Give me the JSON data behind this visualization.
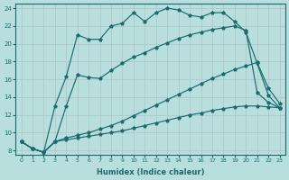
{
  "xlabel": "Humidex (Indice chaleur)",
  "bg_color": "#b8dede",
  "grid_color": "#b0c8c8",
  "line_color": "#1a6b6b",
  "xlim": [
    -0.5,
    23.5
  ],
  "ylim": [
    7.5,
    24.5
  ],
  "xticks": [
    0,
    1,
    2,
    3,
    4,
    5,
    6,
    7,
    8,
    9,
    10,
    11,
    12,
    13,
    14,
    15,
    16,
    17,
    18,
    19,
    20,
    21,
    22,
    23
  ],
  "yticks": [
    8,
    10,
    12,
    14,
    16,
    18,
    20,
    22,
    24
  ],
  "lines": [
    [
      9.0,
      8.2,
      7.8,
      9.0,
      9.2,
      9.4,
      9.6,
      9.8,
      10.0,
      10.2,
      10.5,
      10.8,
      11.1,
      11.4,
      11.7,
      12.0,
      12.2,
      12.5,
      12.7,
      12.9,
      13.0,
      13.0,
      12.9,
      12.8
    ],
    [
      9.0,
      8.2,
      7.8,
      9.0,
      9.4,
      9.7,
      10.0,
      10.4,
      10.8,
      11.3,
      11.9,
      12.5,
      13.1,
      13.7,
      14.3,
      14.9,
      15.5,
      16.1,
      16.6,
      17.1,
      17.5,
      17.9,
      15.0,
      13.3
    ],
    [
      9.0,
      8.2,
      7.8,
      9.0,
      13.0,
      16.5,
      16.2,
      16.1,
      17.0,
      17.8,
      18.5,
      19.0,
      19.6,
      20.1,
      20.6,
      21.0,
      21.3,
      21.6,
      21.8,
      22.0,
      21.5,
      14.5,
      13.4,
      12.8
    ],
    [
      9.0,
      8.2,
      7.8,
      13.0,
      16.3,
      21.0,
      20.5,
      20.5,
      22.0,
      22.3,
      23.5,
      22.5,
      23.5,
      24.0,
      23.8,
      23.2,
      23.0,
      23.5,
      23.5,
      22.5,
      21.3,
      17.8,
      14.2,
      12.8
    ]
  ]
}
